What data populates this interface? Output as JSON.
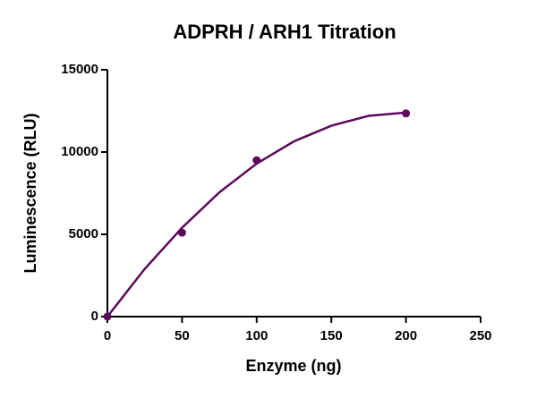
{
  "chart_data": {
    "type": "scatter",
    "title": "ADPRH / ARH1 Titration",
    "x_label": "Enzyme (ng)",
    "y_label": "Luminescence (RLU)",
    "xlim": [
      0,
      250
    ],
    "xticks": [
      0,
      50,
      100,
      150,
      200,
      250
    ],
    "ylim": [
      0,
      15000
    ],
    "yticks": [
      0,
      5000,
      10000,
      15000
    ],
    "grid": false,
    "series": [
      {
        "color": "#5c0a5c",
        "style": "markers",
        "x": [
          0,
          50,
          100,
          200
        ],
        "values": [
          0,
          5100,
          9500,
          12350
        ]
      },
      {
        "color": "#5c0a5c",
        "style": "line",
        "x": [
          0,
          25,
          50,
          75,
          100,
          125,
          150,
          175,
          200
        ],
        "values": [
          0,
          2900,
          5400,
          7550,
          9300,
          10650,
          11600,
          12200,
          12400
        ]
      }
    ]
  }
}
